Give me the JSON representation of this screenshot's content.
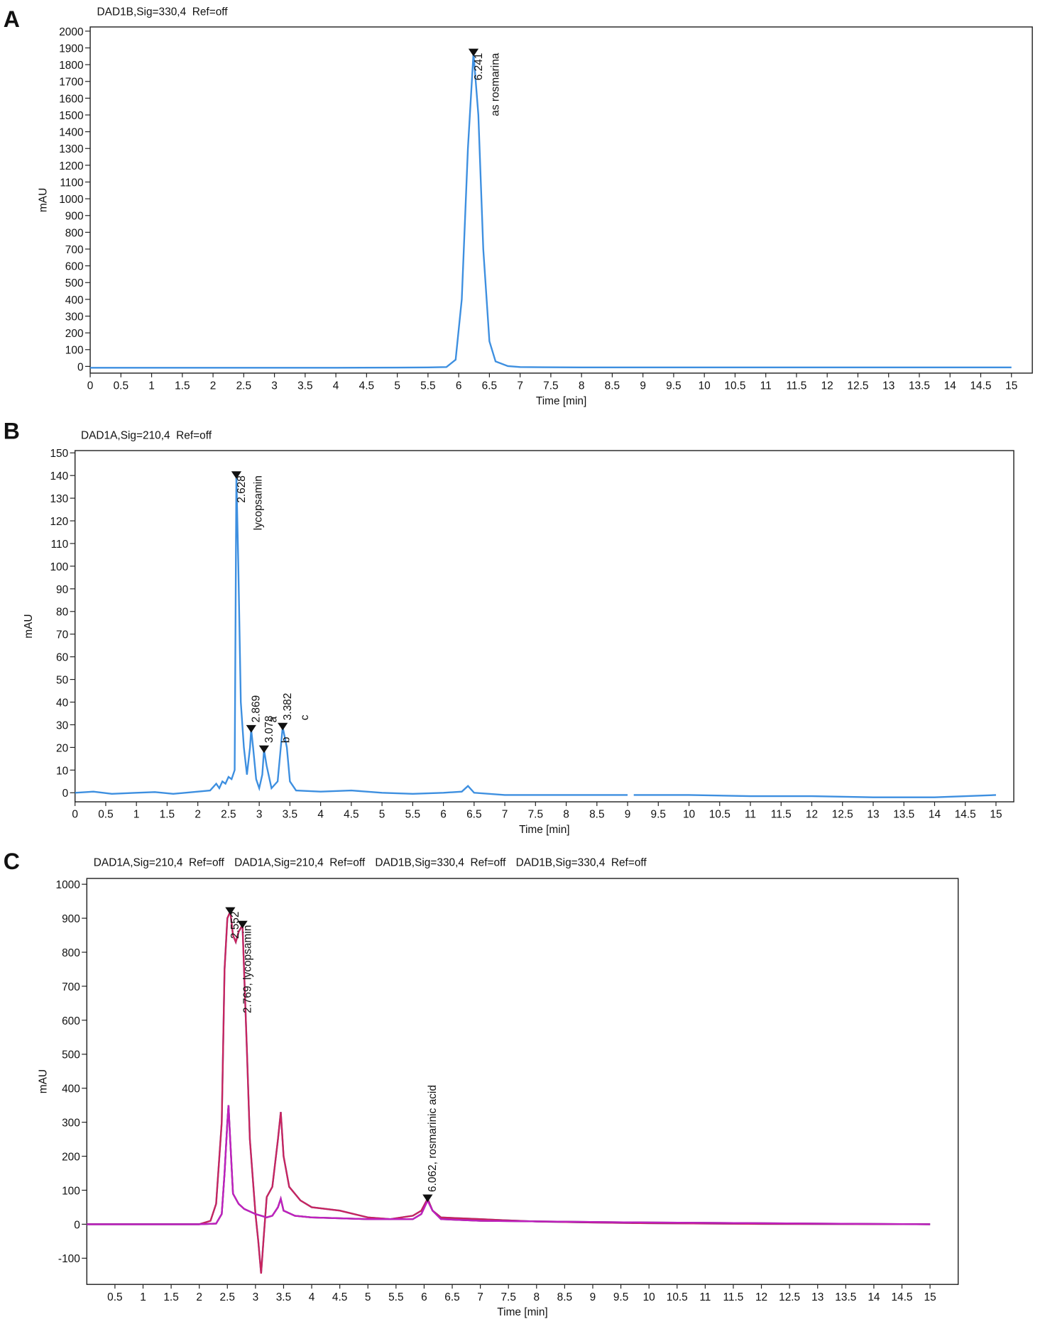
{
  "chart_data": [
    {
      "type": "line",
      "panel": "A",
      "ylabel": "mAU",
      "xlabel": "Time [min]",
      "xlim": [
        0,
        15.34
      ],
      "ylim": [
        -40,
        2025
      ],
      "xticks": [
        0,
        0.5,
        1,
        1.5,
        2,
        2.5,
        3,
        3.5,
        4,
        4.5,
        5,
        5.5,
        6,
        6.5,
        7,
        7.5,
        8,
        8.5,
        9,
        9.5,
        10,
        10.5,
        11,
        11.5,
        12,
        12.5,
        13,
        13.5,
        14,
        14.5,
        15
      ],
      "yticks": [
        0,
        100,
        200,
        300,
        400,
        500,
        600,
        700,
        800,
        900,
        1000,
        1100,
        1200,
        1300,
        1400,
        1500,
        1600,
        1700,
        1800,
        1900,
        2000
      ],
      "series": [
        {
          "name": "DAD1B,Sig=330,4  Ref=off",
          "color": "#3d8fe0",
          "x": [
            0,
            1,
            2,
            3,
            4,
            5,
            5.5,
            5.8,
            5.95,
            6.05,
            6.15,
            6.241,
            6.32,
            6.4,
            6.5,
            6.6,
            6.8,
            7,
            8,
            10,
            12,
            15
          ],
          "values": [
            -8,
            -8,
            -8,
            -8,
            -8,
            -7,
            -6,
            -4,
            40,
            400,
            1300,
            1870,
            1500,
            700,
            150,
            30,
            2,
            -4,
            -6,
            -6,
            -6,
            -6
          ]
        }
      ],
      "peaks": [
        {
          "time": 6.241,
          "height": 1870,
          "color": "#3d8fe0",
          "labels": [
            "6.241",
            "as rosmarina"
          ]
        }
      ]
    },
    {
      "type": "line",
      "panel": "B",
      "ylabel": "mAU",
      "xlabel": "Time [min]",
      "xlim": [
        0,
        15.29
      ],
      "ylim": [
        -4,
        151
      ],
      "xticks": [
        0,
        0.5,
        1,
        1.5,
        2,
        2.5,
        3,
        3.5,
        4,
        4.5,
        5,
        5.5,
        6,
        6.5,
        7,
        7.5,
        8,
        8.5,
        9,
        9.5,
        10,
        10.5,
        11,
        11.5,
        12,
        12.5,
        13,
        13.5,
        14,
        14.5,
        15
      ],
      "yticks": [
        0,
        10,
        20,
        30,
        40,
        50,
        60,
        70,
        80,
        90,
        100,
        110,
        120,
        130,
        140,
        150
      ],
      "series": [
        {
          "name": "DAD1A,Sig=210,4  Ref=off",
          "color": "#3d8fe0",
          "x": [
            0,
            0.3,
            0.6,
            1,
            1.3,
            1.6,
            2,
            2.2,
            2.3,
            2.35,
            2.4,
            2.45,
            2.5,
            2.55,
            2.6,
            2.628,
            2.66,
            2.7,
            2.75,
            2.8,
            2.85,
            2.869,
            2.9,
            2.95,
            3.0,
            3.05,
            3.078,
            3.12,
            3.2,
            3.3,
            3.382,
            3.45,
            3.5,
            3.6,
            4,
            4.5,
            5,
            5.5,
            6,
            6.3,
            6.4,
            6.5,
            7,
            8,
            8.5,
            9,
            9.05,
            9.1,
            10,
            11,
            12,
            13,
            14,
            15
          ],
          "values": [
            0,
            0.5,
            -0.5,
            0,
            0.3,
            -0.5,
            0.5,
            1,
            4,
            2,
            5,
            4,
            7,
            6,
            10,
            140,
            100,
            40,
            20,
            8,
            20,
            28,
            20,
            6,
            2,
            8,
            19,
            12,
            2,
            5,
            29,
            20,
            5,
            1,
            0.5,
            1,
            0,
            -0.5,
            0,
            0.5,
            3,
            0,
            -1,
            -1,
            -1,
            -1,
            null,
            -1,
            -1,
            -1.5,
            -1.5,
            -2,
            -2,
            -1
          ]
        }
      ],
      "peaks": [
        {
          "time": 2.628,
          "height": 140,
          "color": "#3d8fe0",
          "labels": [
            "2.628",
            "lycopsamin"
          ]
        },
        {
          "time": 2.869,
          "height": 28,
          "color": "#3d8fe0",
          "labels": [
            "2.869",
            "a"
          ]
        },
        {
          "time": 3.078,
          "height": 19,
          "color": "#3d8fe0",
          "labels": [
            "3.078",
            "b"
          ]
        },
        {
          "time": 3.382,
          "height": 29,
          "color": "#3d8fe0",
          "labels": [
            "3.382",
            "c"
          ]
        }
      ]
    },
    {
      "type": "line",
      "panel": "C",
      "ylabel": "mAU",
      "xlabel": "Time [min]",
      "xlim": [
        0,
        15.5
      ],
      "ylim": [
        -177,
        1017
      ],
      "xticks": [
        0.5,
        1,
        1.5,
        2,
        2.5,
        3,
        3.5,
        4,
        4.5,
        5,
        5.5,
        6,
        6.5,
        7,
        7.5,
        8,
        8.5,
        9,
        9.5,
        10,
        10.5,
        11,
        11.5,
        12,
        12.5,
        13,
        13.5,
        14,
        14.5,
        15
      ],
      "yticks": [
        -100,
        0,
        100,
        200,
        300,
        400,
        500,
        600,
        700,
        800,
        900,
        1000
      ],
      "series": [
        {
          "name": "DAD1A,Sig=210,4  Ref=off",
          "color": "#3d8fe0",
          "x": [
            0,
            1,
            2,
            2.2,
            2.3,
            2.4,
            2.45,
            2.5,
            2.552,
            2.6,
            2.65,
            2.7,
            2.769,
            2.85,
            2.9,
            3.0,
            3.05,
            3.1,
            3.15,
            3.2,
            3.3,
            3.4,
            3.45,
            3.5,
            3.6,
            3.8,
            4,
            4.5,
            5,
            5.4,
            5.8,
            5.95,
            6.062,
            6.15,
            6.3,
            7,
            7.4,
            8,
            9,
            10,
            12,
            15
          ],
          "values": [
            0,
            0,
            0,
            10,
            60,
            300,
            750,
            900,
            920,
            850,
            830,
            860,
            880,
            500,
            250,
            30,
            -50,
            -145,
            -30,
            80,
            110,
            250,
            330,
            200,
            110,
            70,
            50,
            40,
            20,
            15,
            25,
            40,
            75,
            40,
            20,
            15,
            12,
            8,
            5,
            3,
            1,
            0
          ]
        },
        {
          "name": "DAD1A,Sig=210,4  Ref=off",
          "color": "#c8245e",
          "x": [
            0,
            1,
            2,
            2.2,
            2.3,
            2.4,
            2.45,
            2.5,
            2.552,
            2.6,
            2.65,
            2.7,
            2.769,
            2.85,
            2.9,
            3.0,
            3.05,
            3.1,
            3.15,
            3.2,
            3.3,
            3.4,
            3.45,
            3.5,
            3.6,
            3.8,
            4,
            4.5,
            5,
            5.4,
            5.8,
            5.95,
            6.062,
            6.15,
            6.3,
            7,
            7.4,
            8,
            9,
            10,
            12,
            15
          ],
          "values": [
            0,
            0,
            0,
            10,
            60,
            300,
            750,
            900,
            920,
            850,
            830,
            860,
            880,
            500,
            250,
            30,
            -50,
            -145,
            -30,
            80,
            110,
            250,
            330,
            200,
            110,
            70,
            50,
            40,
            20,
            15,
            25,
            40,
            75,
            40,
            20,
            15,
            12,
            8,
            5,
            3,
            1,
            0
          ]
        },
        {
          "name": "DAD1B,Sig=330,4  Ref=off",
          "color": "#222222",
          "x": [
            0,
            1,
            2,
            2.3,
            2.4,
            2.45,
            2.5,
            2.52,
            2.55,
            2.6,
            2.7,
            2.8,
            3.0,
            3.2,
            3.3,
            3.4,
            3.45,
            3.5,
            3.7,
            4,
            5,
            5.8,
            5.95,
            6.062,
            6.15,
            6.3,
            7,
            10,
            15
          ],
          "values": [
            0,
            0,
            0,
            2,
            30,
            150,
            300,
            350,
            250,
            90,
            60,
            45,
            30,
            20,
            25,
            50,
            75,
            40,
            25,
            20,
            15,
            15,
            30,
            70,
            40,
            15,
            10,
            5,
            0
          ]
        },
        {
          "name": "DAD1B,Sig=330,4  Ref=off",
          "color": "#c020c0",
          "x": [
            0,
            1,
            2,
            2.3,
            2.4,
            2.45,
            2.5,
            2.52,
            2.55,
            2.6,
            2.7,
            2.8,
            3.0,
            3.2,
            3.3,
            3.4,
            3.45,
            3.5,
            3.7,
            4,
            5,
            5.8,
            5.95,
            6.062,
            6.15,
            6.3,
            7,
            10,
            15
          ],
          "values": [
            0,
            0,
            0,
            2,
            30,
            150,
            300,
            350,
            250,
            90,
            60,
            45,
            30,
            20,
            25,
            50,
            75,
            40,
            25,
            20,
            15,
            15,
            30,
            70,
            40,
            15,
            10,
            5,
            0
          ]
        }
      ],
      "peaks": [
        {
          "time": 2.552,
          "height": 920,
          "color": "#c8245e",
          "labels": [
            "2.552"
          ]
        },
        {
          "time": 2.769,
          "height": 880,
          "color": "#c8245e",
          "labels": [
            "2.769, lycopsamin"
          ]
        },
        {
          "time": 6.062,
          "height": 75,
          "color": "#8a1a9a",
          "labels": [
            "6.062, rosmarinic acid"
          ]
        }
      ]
    }
  ]
}
